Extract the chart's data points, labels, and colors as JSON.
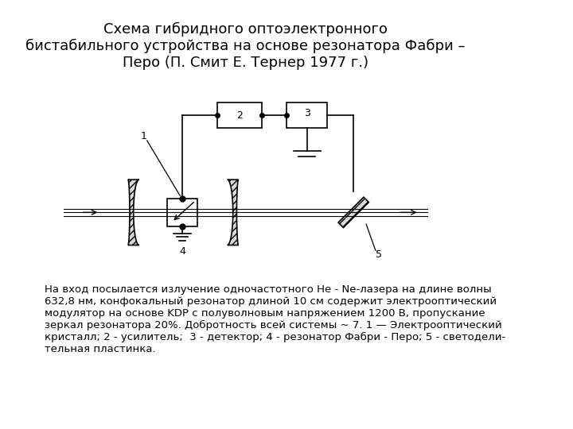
{
  "title": "Схема гибридного оптоэлектронного\nбистабильного устройства на основе резонатора Фабри –\nПеро (П. Смит Е. Тернер 1977 г.)",
  "title_fontsize": 13,
  "description": "На вход посылается излучение одночастотного Не - Ne-лазера на длине волны\n632,8 нм, конфокальный резонатор длиной 10 см содержит электрооптический\nмодулятор на основе KDP с полуволновым напряжением 1200 В, пропускание\nзеркал резонатора 20%. Добротность всей системы ~ 7. 1 — Электрооптический\nкристалл; 2 - усилитель;  3 - детектор; 4 - резонатор Фабри - Перо; 5 - светодели-\nтельная пластинка.",
  "desc_fontsize": 9.5,
  "bg_color": "#ffffff",
  "line_color": "#000000"
}
